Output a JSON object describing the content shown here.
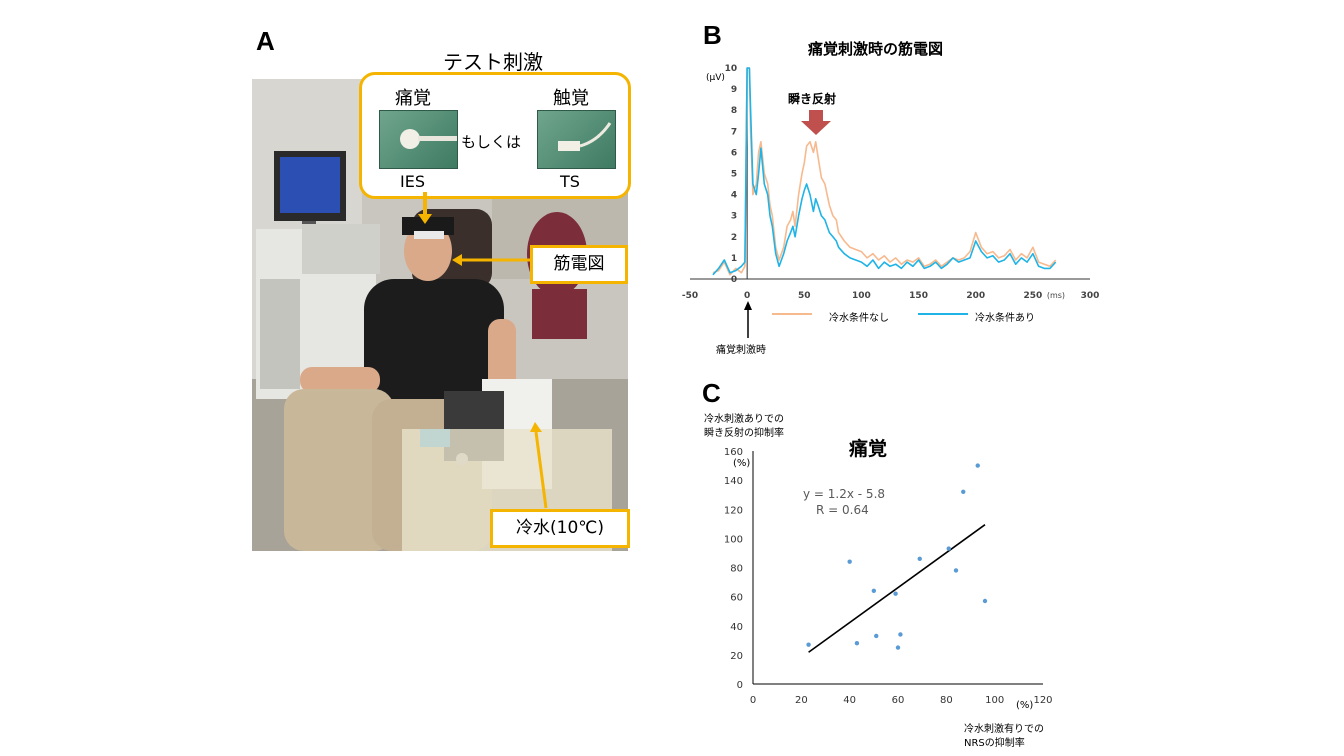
{
  "panelA": {
    "letter": "A",
    "title": "テスト刺激",
    "pain_label": "痛覚",
    "touch_label": "触覚",
    "or_label": "もしくは",
    "ies_label": "IES",
    "ts_label": "TS",
    "emg_label": "筋電図",
    "cold_label": "冷水(10℃)",
    "accent_color": "#f4b400"
  },
  "panelB": {
    "letter": "B",
    "stim_label": "痛覚刺激時",
    "annotation": "瞬き反射",
    "legend_items": [
      "冷水条件なし",
      "冷水条件あり"
    ],
    "chart_data": {
      "type": "line",
      "title": "痛覚刺激時の筋電図",
      "ylabel": "(μV)",
      "xlabel": "(ms)",
      "xlim": [
        -50,
        300
      ],
      "ylim": [
        0,
        10
      ],
      "x_ticks": [
        -50,
        0,
        50,
        100,
        150,
        200,
        250,
        300
      ],
      "y_ticks": [
        0,
        1,
        2,
        3,
        4,
        5,
        6,
        7,
        8,
        9,
        10
      ],
      "series": [
        {
          "name": "冷水条件なし",
          "color": "#f7b98e",
          "x": [
            -30,
            -25,
            -20,
            -15,
            -10,
            -5,
            -2,
            0,
            1,
            2,
            3,
            5,
            8,
            10,
            12,
            15,
            18,
            20,
            22,
            25,
            28,
            30,
            32,
            35,
            38,
            40,
            42,
            45,
            48,
            50,
            52,
            55,
            58,
            60,
            62,
            65,
            68,
            70,
            72,
            75,
            78,
            80,
            85,
            90,
            95,
            100,
            105,
            110,
            115,
            120,
            125,
            130,
            135,
            140,
            145,
            150,
            155,
            160,
            165,
            170,
            175,
            180,
            185,
            190,
            195,
            200,
            205,
            210,
            215,
            220,
            225,
            230,
            235,
            240,
            245,
            250,
            255,
            260,
            265,
            270
          ],
          "y": [
            0.3,
            0.4,
            0.8,
            0.2,
            0.5,
            0.3,
            0.6,
            10,
            10,
            10,
            7,
            4,
            4.5,
            6,
            6.5,
            5,
            4.5,
            3.5,
            3,
            1.5,
            0.9,
            1.2,
            1.5,
            2.5,
            2.8,
            3.2,
            2.5,
            4,
            5,
            5.5,
            6.3,
            6.5,
            6,
            6.5,
            5.8,
            4.8,
            4.5,
            4,
            3.5,
            3,
            2.8,
            2.2,
            1.8,
            1.5,
            1.4,
            1.3,
            1.0,
            1.2,
            0.9,
            1.1,
            0.8,
            1.0,
            0.7,
            0.9,
            0.8,
            1.0,
            0.6,
            0.7,
            0.9,
            0.6,
            0.8,
            1.0,
            0.9,
            1.0,
            1.3,
            2.2,
            1.5,
            1.2,
            1.3,
            1.0,
            1.1,
            1.4,
            0.9,
            1.2,
            1.0,
            1.5,
            0.8,
            0.7,
            0.6,
            0.9
          ]
        },
        {
          "name": "冷水条件あり",
          "color": "#1fb3e6",
          "x": [
            -30,
            -25,
            -20,
            -15,
            -10,
            -5,
            -2,
            0,
            1,
            2,
            3,
            5,
            8,
            10,
            12,
            15,
            18,
            20,
            22,
            25,
            28,
            30,
            32,
            35,
            38,
            40,
            42,
            45,
            48,
            50,
            52,
            55,
            58,
            60,
            62,
            65,
            68,
            70,
            72,
            75,
            78,
            80,
            85,
            90,
            95,
            100,
            105,
            110,
            115,
            120,
            125,
            130,
            135,
            140,
            145,
            150,
            155,
            160,
            165,
            170,
            175,
            180,
            185,
            190,
            195,
            200,
            205,
            210,
            215,
            220,
            225,
            230,
            235,
            240,
            245,
            250,
            255,
            260,
            265,
            270
          ],
          "y": [
            0.2,
            0.5,
            0.9,
            0.3,
            0.4,
            0.6,
            0.8,
            10,
            10,
            10,
            8,
            4.5,
            4,
            5,
            6.2,
            4.5,
            4,
            3,
            2.5,
            1.2,
            0.6,
            0.9,
            1.2,
            1.8,
            2.2,
            2.5,
            2.0,
            3.0,
            3.8,
            4.2,
            4.5,
            4.0,
            3.2,
            3.8,
            3.5,
            3.0,
            2.8,
            2.5,
            2.2,
            2.0,
            1.8,
            1.5,
            1.2,
            1.0,
            0.9,
            0.8,
            0.6,
            0.9,
            0.5,
            0.8,
            0.6,
            0.7,
            0.5,
            0.8,
            0.6,
            0.9,
            0.5,
            0.6,
            0.8,
            0.5,
            0.7,
            1.0,
            0.8,
            0.9,
            1.0,
            1.8,
            1.3,
            1.0,
            1.1,
            0.8,
            0.9,
            1.2,
            0.7,
            1.0,
            0.8,
            1.2,
            0.6,
            0.5,
            0.5,
            0.8
          ]
        }
      ]
    }
  },
  "panelC": {
    "letter": "C",
    "y_axis_title_line1": "冷水刺激ありでの",
    "y_axis_title_line2": "瞬き反射の抑制率",
    "x_axis_title_line1": "冷水刺激有りでの",
    "x_axis_title_line2": "NRSの抑制率",
    "y_unit": "(%)",
    "x_unit": "(%)",
    "equation": "y = 1.2x - 5.8",
    "r_value": "R = 0.64",
    "chart_data": {
      "type": "scatter",
      "title": "痛覚",
      "xlim": [
        0,
        120
      ],
      "ylim": [
        0,
        160
      ],
      "x_ticks": [
        0,
        20,
        40,
        60,
        80,
        100,
        120
      ],
      "y_ticks": [
        0,
        20,
        40,
        60,
        80,
        100,
        120,
        140,
        160
      ],
      "point_color": "#5b9bd5",
      "points": [
        {
          "x": 23,
          "y": 27
        },
        {
          "x": 40,
          "y": 84
        },
        {
          "x": 43,
          "y": 28
        },
        {
          "x": 50,
          "y": 64
        },
        {
          "x": 51,
          "y": 33
        },
        {
          "x": 59,
          "y": 62
        },
        {
          "x": 60,
          "y": 25
        },
        {
          "x": 61,
          "y": 34
        },
        {
          "x": 69,
          "y": 86
        },
        {
          "x": 81,
          "y": 93
        },
        {
          "x": 84,
          "y": 78
        },
        {
          "x": 87,
          "y": 132
        },
        {
          "x": 93,
          "y": 150
        },
        {
          "x": 96,
          "y": 57
        }
      ],
      "trendline": {
        "slope": 1.2,
        "intercept": -5.8,
        "x_range": [
          23,
          96
        ]
      }
    }
  }
}
